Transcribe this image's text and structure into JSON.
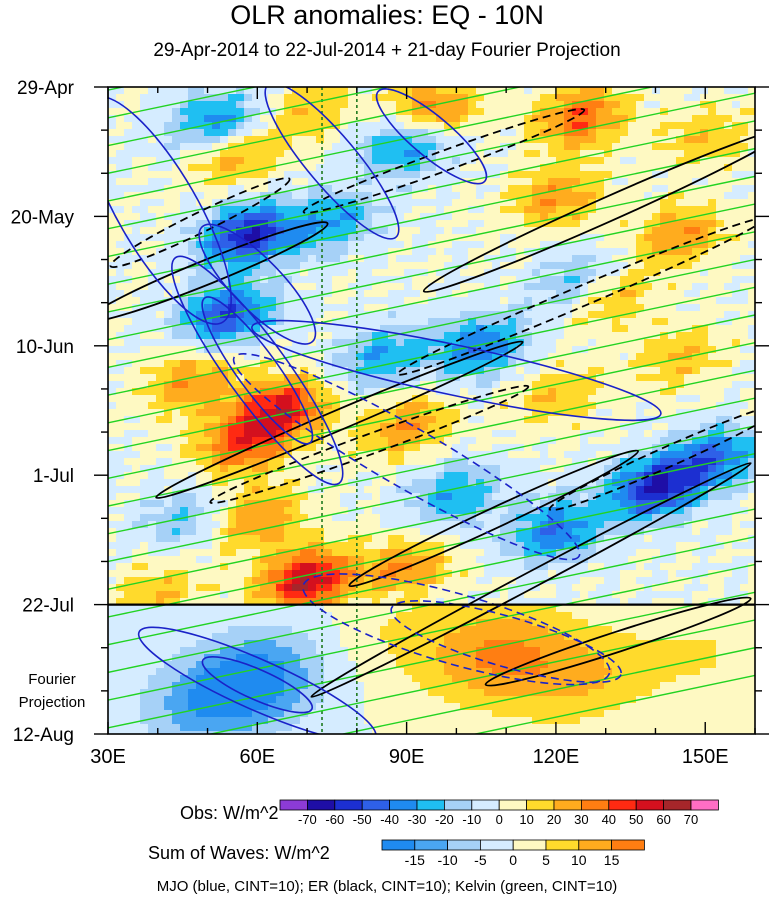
{
  "chart_data": {
    "type": "heatmap",
    "title": "OLR anomalies: EQ - 10N",
    "subtitle": "29-Apr-2014 to 22-Jul-2014 + 21-day Fourier Projection",
    "x_axis": {
      "range": [
        30,
        160
      ],
      "units": "degrees longitude",
      "ticks": [
        30,
        60,
        90,
        120,
        150
      ],
      "tick_labels": [
        "30E",
        "60E",
        "90E",
        "120E",
        "150E"
      ]
    },
    "y_axis": {
      "range_days": [
        0,
        105
      ],
      "ticks_days": [
        0,
        21,
        42,
        63,
        84,
        105
      ],
      "tick_labels": [
        "29-Apr",
        "20-May",
        "10-Jun",
        "1-Jul",
        "22-Jul",
        "12-Aug"
      ]
    },
    "projection_start_day": 84,
    "projection_label": [
      "Fourier",
      "Projection"
    ],
    "reference_longitudes": [
      73,
      80
    ],
    "obs_colorbar": {
      "label": "Obs: W/m^2",
      "levels": [
        -70,
        -60,
        -50,
        -40,
        -30,
        -20,
        -10,
        0,
        10,
        20,
        30,
        40,
        50,
        60,
        70
      ],
      "colors": [
        "#8c3bd6",
        "#1e0ea6",
        "#1c2fd1",
        "#2e60e8",
        "#1f8bf0",
        "#1fbff2",
        "#a6d1f7",
        "#d5ecff",
        "#fef9c2",
        "#ffda2c",
        "#ffac1e",
        "#ff7e12",
        "#ff2a12",
        "#d4101e",
        "#a6262a",
        "#ff6ec4"
      ]
    },
    "waves_colorbar": {
      "label": "Sum of Waves: W/m^2",
      "levels": [
        -15,
        -10,
        -5,
        0,
        5,
        10,
        15
      ],
      "colors": [
        "#1f8bf0",
        "#4aa6f2",
        "#a6d1f7",
        "#d5ecff",
        "#fef9c2",
        "#ffda2c",
        "#ffac1e",
        "#ff7e12"
      ]
    },
    "anomaly_centers": [
      {
        "lon": 52,
        "day": 6,
        "value": -40
      },
      {
        "lon": 58,
        "day": 24,
        "value": -60
      },
      {
        "lon": 54,
        "day": 37,
        "value": -50
      },
      {
        "lon": 90,
        "day": 9,
        "value": -40
      },
      {
        "lon": 75,
        "day": 22,
        "value": -30
      },
      {
        "lon": 85,
        "day": 44,
        "value": -30
      },
      {
        "lon": 105,
        "day": 42,
        "value": -40
      },
      {
        "lon": 125,
        "day": 32,
        "value": -30
      },
      {
        "lon": 140,
        "day": 65,
        "value": -60
      },
      {
        "lon": 120,
        "day": 72,
        "value": -40
      },
      {
        "lon": 100,
        "day": 66,
        "value": -30
      },
      {
        "lon": 152,
        "day": 60,
        "value": -40
      },
      {
        "lon": 45,
        "day": 70,
        "value": -20
      },
      {
        "lon": 70,
        "day": 4,
        "value": 20
      },
      {
        "lon": 95,
        "day": 4,
        "value": 40
      },
      {
        "lon": 125,
        "day": 5,
        "value": 40
      },
      {
        "lon": 150,
        "day": 8,
        "value": 20
      },
      {
        "lon": 55,
        "day": 11,
        "value": 30
      },
      {
        "lon": 120,
        "day": 18,
        "value": 30
      },
      {
        "lon": 145,
        "day": 24,
        "value": 30
      },
      {
        "lon": 130,
        "day": 34,
        "value": 30
      },
      {
        "lon": 65,
        "day": 52,
        "value": 50
      },
      {
        "lon": 57,
        "day": 58,
        "value": 40
      },
      {
        "lon": 90,
        "day": 55,
        "value": 30
      },
      {
        "lon": 47,
        "day": 48,
        "value": 30
      },
      {
        "lon": 70,
        "day": 80,
        "value": 60
      },
      {
        "lon": 60,
        "day": 70,
        "value": 30
      },
      {
        "lon": 90,
        "day": 78,
        "value": 30
      },
      {
        "lon": 40,
        "day": 82,
        "value": 20
      },
      {
        "lon": 120,
        "day": 50,
        "value": 20
      },
      {
        "lon": 145,
        "day": 44,
        "value": 20
      },
      {
        "lon": 60,
        "day": 96,
        "value": -15
      },
      {
        "lon": 50,
        "day": 100,
        "value": -10
      },
      {
        "lon": 108,
        "day": 92,
        "value": 15
      },
      {
        "lon": 125,
        "day": 96,
        "value": 10
      },
      {
        "lon": 150,
        "day": 92,
        "value": 5
      },
      {
        "lon": 88,
        "day": 88,
        "value": 5
      }
    ],
    "contour_legend": "MJO (blue, CINT=10); ER (black, CINT=10); Kelvin (green, CINT=10)"
  }
}
